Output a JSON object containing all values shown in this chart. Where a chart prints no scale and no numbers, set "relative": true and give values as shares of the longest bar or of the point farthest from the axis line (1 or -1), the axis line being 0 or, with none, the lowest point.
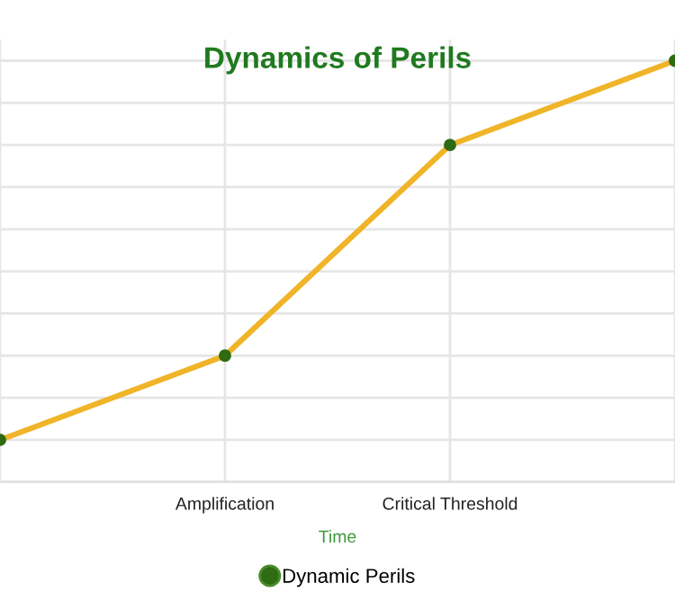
{
  "chart_data": {
    "type": "line",
    "title": "Dynamics of Perils",
    "xlabel": "Time",
    "categories": [
      null,
      "Amplification",
      "Critical Threshold",
      null
    ],
    "series": [
      {
        "name": "Dynamic Perils",
        "color": "#f0b429",
        "values": [
          0.1,
          0.3,
          0.8,
          1.0
        ]
      }
    ],
    "relative": true,
    "grid": true,
    "legend": "bottom",
    "marker": "circle",
    "line_style": "solid"
  }
}
